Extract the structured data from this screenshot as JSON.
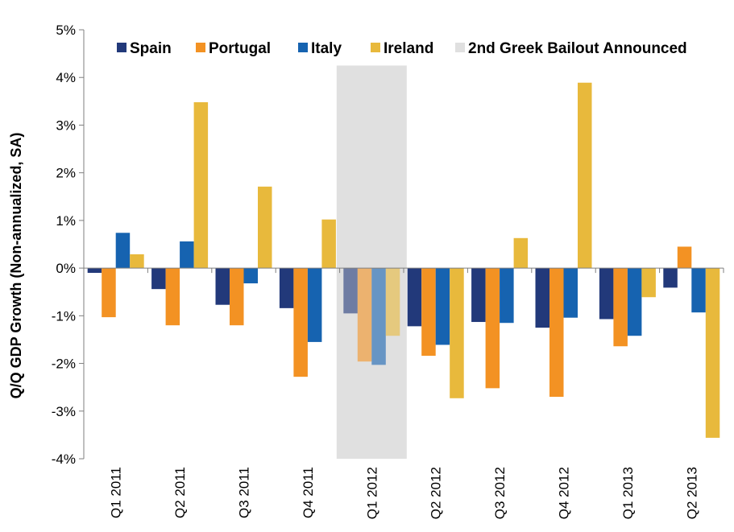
{
  "chart_data": {
    "type": "bar",
    "title": "",
    "xlabel": "",
    "ylabel": "Q/Q GDP Growth (Non-annualized, SA)",
    "ylim": [
      -4,
      5
    ],
    "yticks": [
      {
        "value": 5,
        "label": "5%"
      },
      {
        "value": 4,
        "label": "4%"
      },
      {
        "value": 3,
        "label": "3%"
      },
      {
        "value": 2,
        "label": "2%"
      },
      {
        "value": 1,
        "label": "1%"
      },
      {
        "value": 0,
        "label": "0%"
      },
      {
        "value": -1,
        "label": "-1%"
      },
      {
        "value": -2,
        "label": "-2%"
      },
      {
        "value": -3,
        "label": "-3%"
      },
      {
        "value": -4,
        "label": "-4%"
      }
    ],
    "categories": [
      "Q1 2011",
      "Q2 2011",
      "Q3 2011",
      "Q4 2011",
      "Q1 2012",
      "Q2 2012",
      "Q3 2012",
      "Q4 2012",
      "Q1 2013",
      "Q2 2013"
    ],
    "series": [
      {
        "name": "Spain",
        "color": "#22397a",
        "values": [
          -0.1,
          -0.44,
          -0.77,
          -0.84,
          -0.95,
          -1.22,
          -1.13,
          -1.25,
          -1.07,
          -0.41
        ]
      },
      {
        "name": "Portugal",
        "color": "#f39223",
        "values": [
          -1.03,
          -1.2,
          -1.2,
          -2.28,
          -1.96,
          -1.84,
          -2.52,
          -2.7,
          -1.64,
          0.45
        ]
      },
      {
        "name": "Italy",
        "color": "#1663b0",
        "values": [
          0.74,
          0.56,
          -0.32,
          -1.55,
          -2.03,
          -1.61,
          -1.15,
          -1.04,
          -1.42,
          -0.93
        ]
      },
      {
        "name": "Ireland",
        "color": "#e8b93c",
        "values": [
          0.29,
          3.48,
          1.71,
          1.02,
          -1.42,
          -2.73,
          0.63,
          3.89,
          -0.61,
          -3.56
        ]
      }
    ],
    "highlight": {
      "label": "2nd Greek Bailout Announced",
      "category": "Q1 2012",
      "color": "#e0e0e0",
      "top_value": 4.25
    },
    "legend_placement": "top",
    "grid": false
  }
}
